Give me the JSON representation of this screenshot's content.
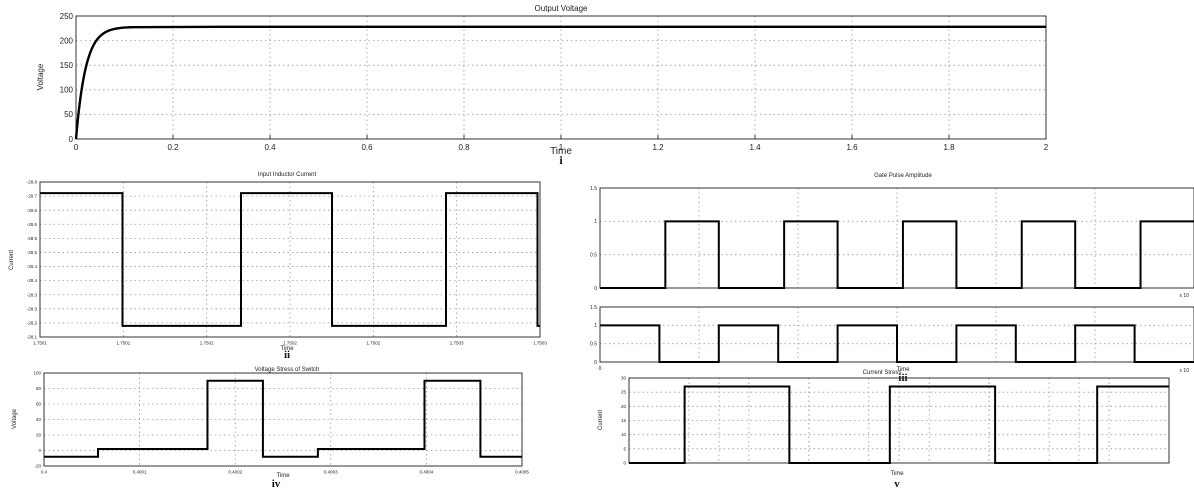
{
  "colors": {
    "trace": "#000000",
    "grid": "#9a9a9a",
    "frame": "#333333"
  },
  "chart_data": [
    {
      "id": "output",
      "type": "line",
      "title": "Output Voltage",
      "xlabel": "Time",
      "ylabel": "Voltage",
      "xlim": [
        0,
        2
      ],
      "ylim": [
        0,
        250
      ],
      "xticks": [
        "0",
        "0.2",
        "0.4",
        "0.6",
        "0.8",
        "1",
        "1.2",
        "1.4",
        "1.6",
        "1.8",
        "2"
      ],
      "yticks": [
        "0",
        "50",
        "100",
        "150",
        "200",
        "250"
      ],
      "grid": true,
      "series": [
        {
          "steady_value": 228,
          "time_constant": 0.02
        }
      ],
      "panel_label": "i"
    },
    {
      "id": "input",
      "type": "line",
      "title": "Input Inductor Current",
      "xlabel": "Time",
      "ylabel": "Current",
      "xlim": [
        1.7501,
        1.7503
      ],
      "ylim": [
        -28.8,
        -28.1
      ],
      "xticks": [
        "1.7501",
        "1.7501",
        "1.7502",
        "1.7502",
        "1.7502",
        "1.7503",
        "1.7503"
      ],
      "yticks": [
        "-28.1",
        "-28.2",
        "-28.3",
        "-28.3",
        "-28.4",
        "-28.4",
        "-28.5",
        "-28.5",
        "-28.6",
        "-28.6",
        "-28.7",
        "-28.8"
      ],
      "grid": true,
      "series": [
        {
          "x": [
            0,
            0.165,
            0.165,
            0.402,
            0.402,
            0.584,
            0.584,
            0.812,
            0.812,
            0.995,
            0.995,
            1
          ],
          "y": [
            -28.15,
            -28.15,
            -28.75,
            -28.75,
            -28.15,
            -28.15,
            -28.75,
            -28.75,
            -28.15,
            -28.15,
            -28.75,
            -28.75
          ]
        }
      ],
      "panel_label": "ii"
    },
    {
      "id": "gate1",
      "type": "line",
      "title": "Gate Pulse Amplitude",
      "xlim": [
        0,
        1
      ],
      "ylim": [
        0,
        1.5
      ],
      "yticks": [
        "0",
        "0.5",
        "1",
        "1.5"
      ],
      "grid": true,
      "series": [
        {
          "x": [
            0,
            0.11,
            0.11,
            0.2,
            0.2,
            0.31,
            0.31,
            0.4,
            0.4,
            0.51,
            0.51,
            0.6,
            0.6,
            0.71,
            0.71,
            0.8,
            0.8,
            0.91,
            0.91,
            1
          ],
          "y": [
            0,
            0,
            1,
            1,
            0,
            0,
            1,
            1,
            0,
            0,
            1,
            1,
            0,
            0,
            1,
            1,
            0,
            0,
            1,
            1
          ]
        }
      ],
      "x_exponent": "x 10"
    },
    {
      "id": "gate2",
      "type": "line",
      "xlabel": "Time",
      "xlim": [
        0,
        1
      ],
      "ylim": [
        0,
        1.5
      ],
      "xticks": [
        "0"
      ],
      "yticks": [
        "0",
        "0.5",
        "1",
        "1.5"
      ],
      "grid": true,
      "series": [
        {
          "x": [
            0,
            0.1,
            0.1,
            0.2,
            0.2,
            0.3,
            0.3,
            0.4,
            0.4,
            0.5,
            0.5,
            0.6,
            0.6,
            0.7,
            0.7,
            0.8,
            0.8,
            0.9,
            0.9,
            1
          ],
          "y": [
            1,
            1,
            0,
            0,
            1,
            1,
            0,
            0,
            1,
            1,
            0,
            0,
            1,
            1,
            0,
            0,
            1,
            1,
            0,
            0
          ]
        }
      ],
      "x_exponent": "x 10",
      "panel_label": "iii"
    },
    {
      "id": "vstress",
      "type": "line",
      "title": "Voltage Stress of Switch",
      "xlabel": "Time",
      "ylabel": "Voltage",
      "xlim": [
        0.4,
        0.4006
      ],
      "ylim": [
        -20,
        100
      ],
      "xticks": [
        "0.4",
        "0.4001",
        "0.4002",
        "0.4003",
        "0.4004",
        "0.4005"
      ],
      "yticks": [
        "-20",
        "0",
        "20",
        "40",
        "60",
        "80",
        "100"
      ],
      "grid": true,
      "series": [
        {
          "x": [
            0,
            0.113,
            0.113,
            0.342,
            0.342,
            0.458,
            0.458,
            0.573,
            0.573,
            0.796,
            0.796,
            0.913,
            0.913,
            1
          ],
          "y": [
            -8,
            -8,
            2,
            2,
            90,
            90,
            -8,
            -8,
            2,
            2,
            90,
            90,
            -8,
            -8
          ]
        }
      ],
      "panel_label": "iv"
    },
    {
      "id": "cstress",
      "type": "line",
      "title": "Current Stress",
      "xlabel": "Time",
      "ylabel": "Current",
      "xlim": [
        0.0,
        1.0
      ],
      "ylim": [
        0,
        30
      ],
      "yticks": [
        "0",
        "5",
        "10",
        "15",
        "20",
        "25",
        "30"
      ],
      "grid": true,
      "series": [
        {
          "x": [
            0,
            0.103,
            0.103,
            0.297,
            0.297,
            0.483,
            0.483,
            0.678,
            0.678,
            0.867,
            0.867,
            1
          ],
          "y": [
            0,
            0,
            27,
            27,
            0,
            0,
            27,
            27,
            0,
            0,
            27,
            27
          ]
        }
      ],
      "panel_label": "v"
    }
  ]
}
